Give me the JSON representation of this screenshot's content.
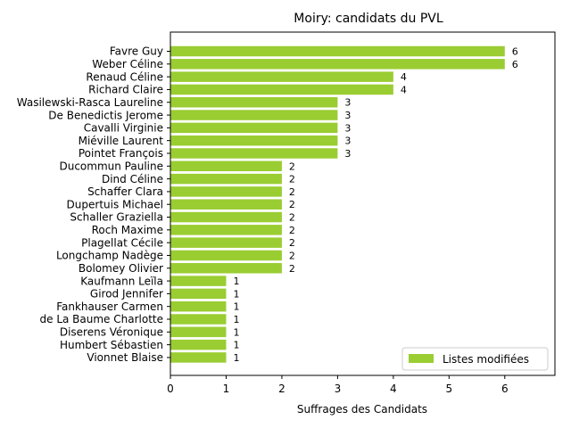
{
  "chart_data": {
    "type": "bar",
    "orientation": "horizontal",
    "title": "Moiry: candidats du PVL",
    "xlabel": "Suffrages des Candidats",
    "ylabel": "",
    "xlim": [
      0,
      6.9
    ],
    "xticks": [
      0,
      1,
      2,
      3,
      4,
      5,
      6
    ],
    "grid": false,
    "legend_position": "lower-right",
    "categories": [
      "Favre Guy",
      "Weber Céline",
      "Renaud Céline",
      "Richard Claire",
      "Wasilewski-Rasca Laureline",
      "De Benedictis Jerome",
      "Cavalli Virginie",
      "Miéville Laurent",
      "Pointet François",
      "Ducommun Pauline",
      "Dind Céline",
      "Schaffer Clara",
      "Dupertuis Michael",
      "Schaller Graziella",
      "Roch Maxime",
      "Plagellat Cécile",
      "Longchamp Nadège",
      "Bolomey Olivier",
      "Kaufmann Leïla",
      "Girod Jennifer",
      "Fankhauser Carmen",
      "de La Baume Charlotte",
      "Diserens Véronique",
      "Humbert Sébastien",
      "Vionnet Blaise"
    ],
    "series": [
      {
        "name": "Listes modifiées",
        "color": "#9acd32",
        "values": [
          6,
          6,
          4,
          4,
          3,
          3,
          3,
          3,
          3,
          2,
          2,
          2,
          2,
          2,
          2,
          2,
          2,
          2,
          1,
          1,
          1,
          1,
          1,
          1,
          1
        ]
      }
    ]
  }
}
